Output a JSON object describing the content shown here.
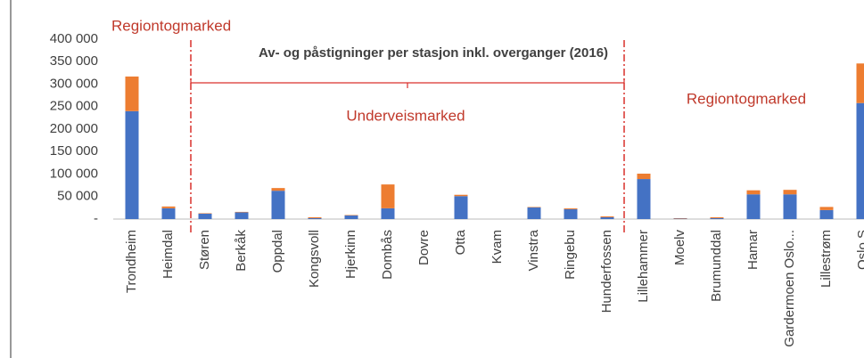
{
  "chart_data": {
    "type": "bar",
    "stacked": true,
    "title": "Av- og påstigninger per stasjon inkl. overganger (2016)",
    "annotations": [
      "Regiontogmarked",
      "Underveismarked",
      "Regiontogmarked"
    ],
    "categories": [
      "Trondheim",
      "Heimdal",
      "Støren",
      "Berkåk",
      "Oppdal",
      "Kongsvoll",
      "Hjerkinn",
      "Dombås",
      "Dovre",
      "Otta",
      "Kvam",
      "Vinstra",
      "Ringebu",
      "Hunderfossen",
      "Lillehammer",
      "Moelv",
      "Brumunddal",
      "Hamar",
      "Gardermoen Oslo...",
      "Lillestrøm",
      "Oslo S"
    ],
    "series": [
      {
        "color": "#4472c4",
        "values": [
          240000,
          24000,
          12000,
          15000,
          63000,
          2000,
          8000,
          24000,
          0,
          51000,
          0,
          26000,
          22000,
          4000,
          89000,
          1000,
          2000,
          55000,
          55000,
          20000,
          258000
        ]
      },
      {
        "color": "#ed7d31",
        "values": [
          77000,
          4000,
          1000,
          1000,
          6000,
          2000,
          1000,
          53000,
          0,
          3000,
          0,
          1000,
          2000,
          2000,
          12000,
          1000,
          2000,
          9000,
          10000,
          7000,
          88000
        ]
      }
    ],
    "ylim": [
      0,
      400000
    ],
    "yticks": [
      {
        "value": 0,
        "label": "-"
      },
      {
        "value": 50000,
        "label": "50 000"
      },
      {
        "value": 100000,
        "label": "100 000"
      },
      {
        "value": 150000,
        "label": "150 000"
      },
      {
        "value": 200000,
        "label": "200 000"
      },
      {
        "value": 250000,
        "label": "250 000"
      },
      {
        "value": 300000,
        "label": "300 000"
      },
      {
        "value": 350000,
        "label": "350 000"
      },
      {
        "value": 400000,
        "label": "400 000"
      }
    ],
    "grid": false
  }
}
